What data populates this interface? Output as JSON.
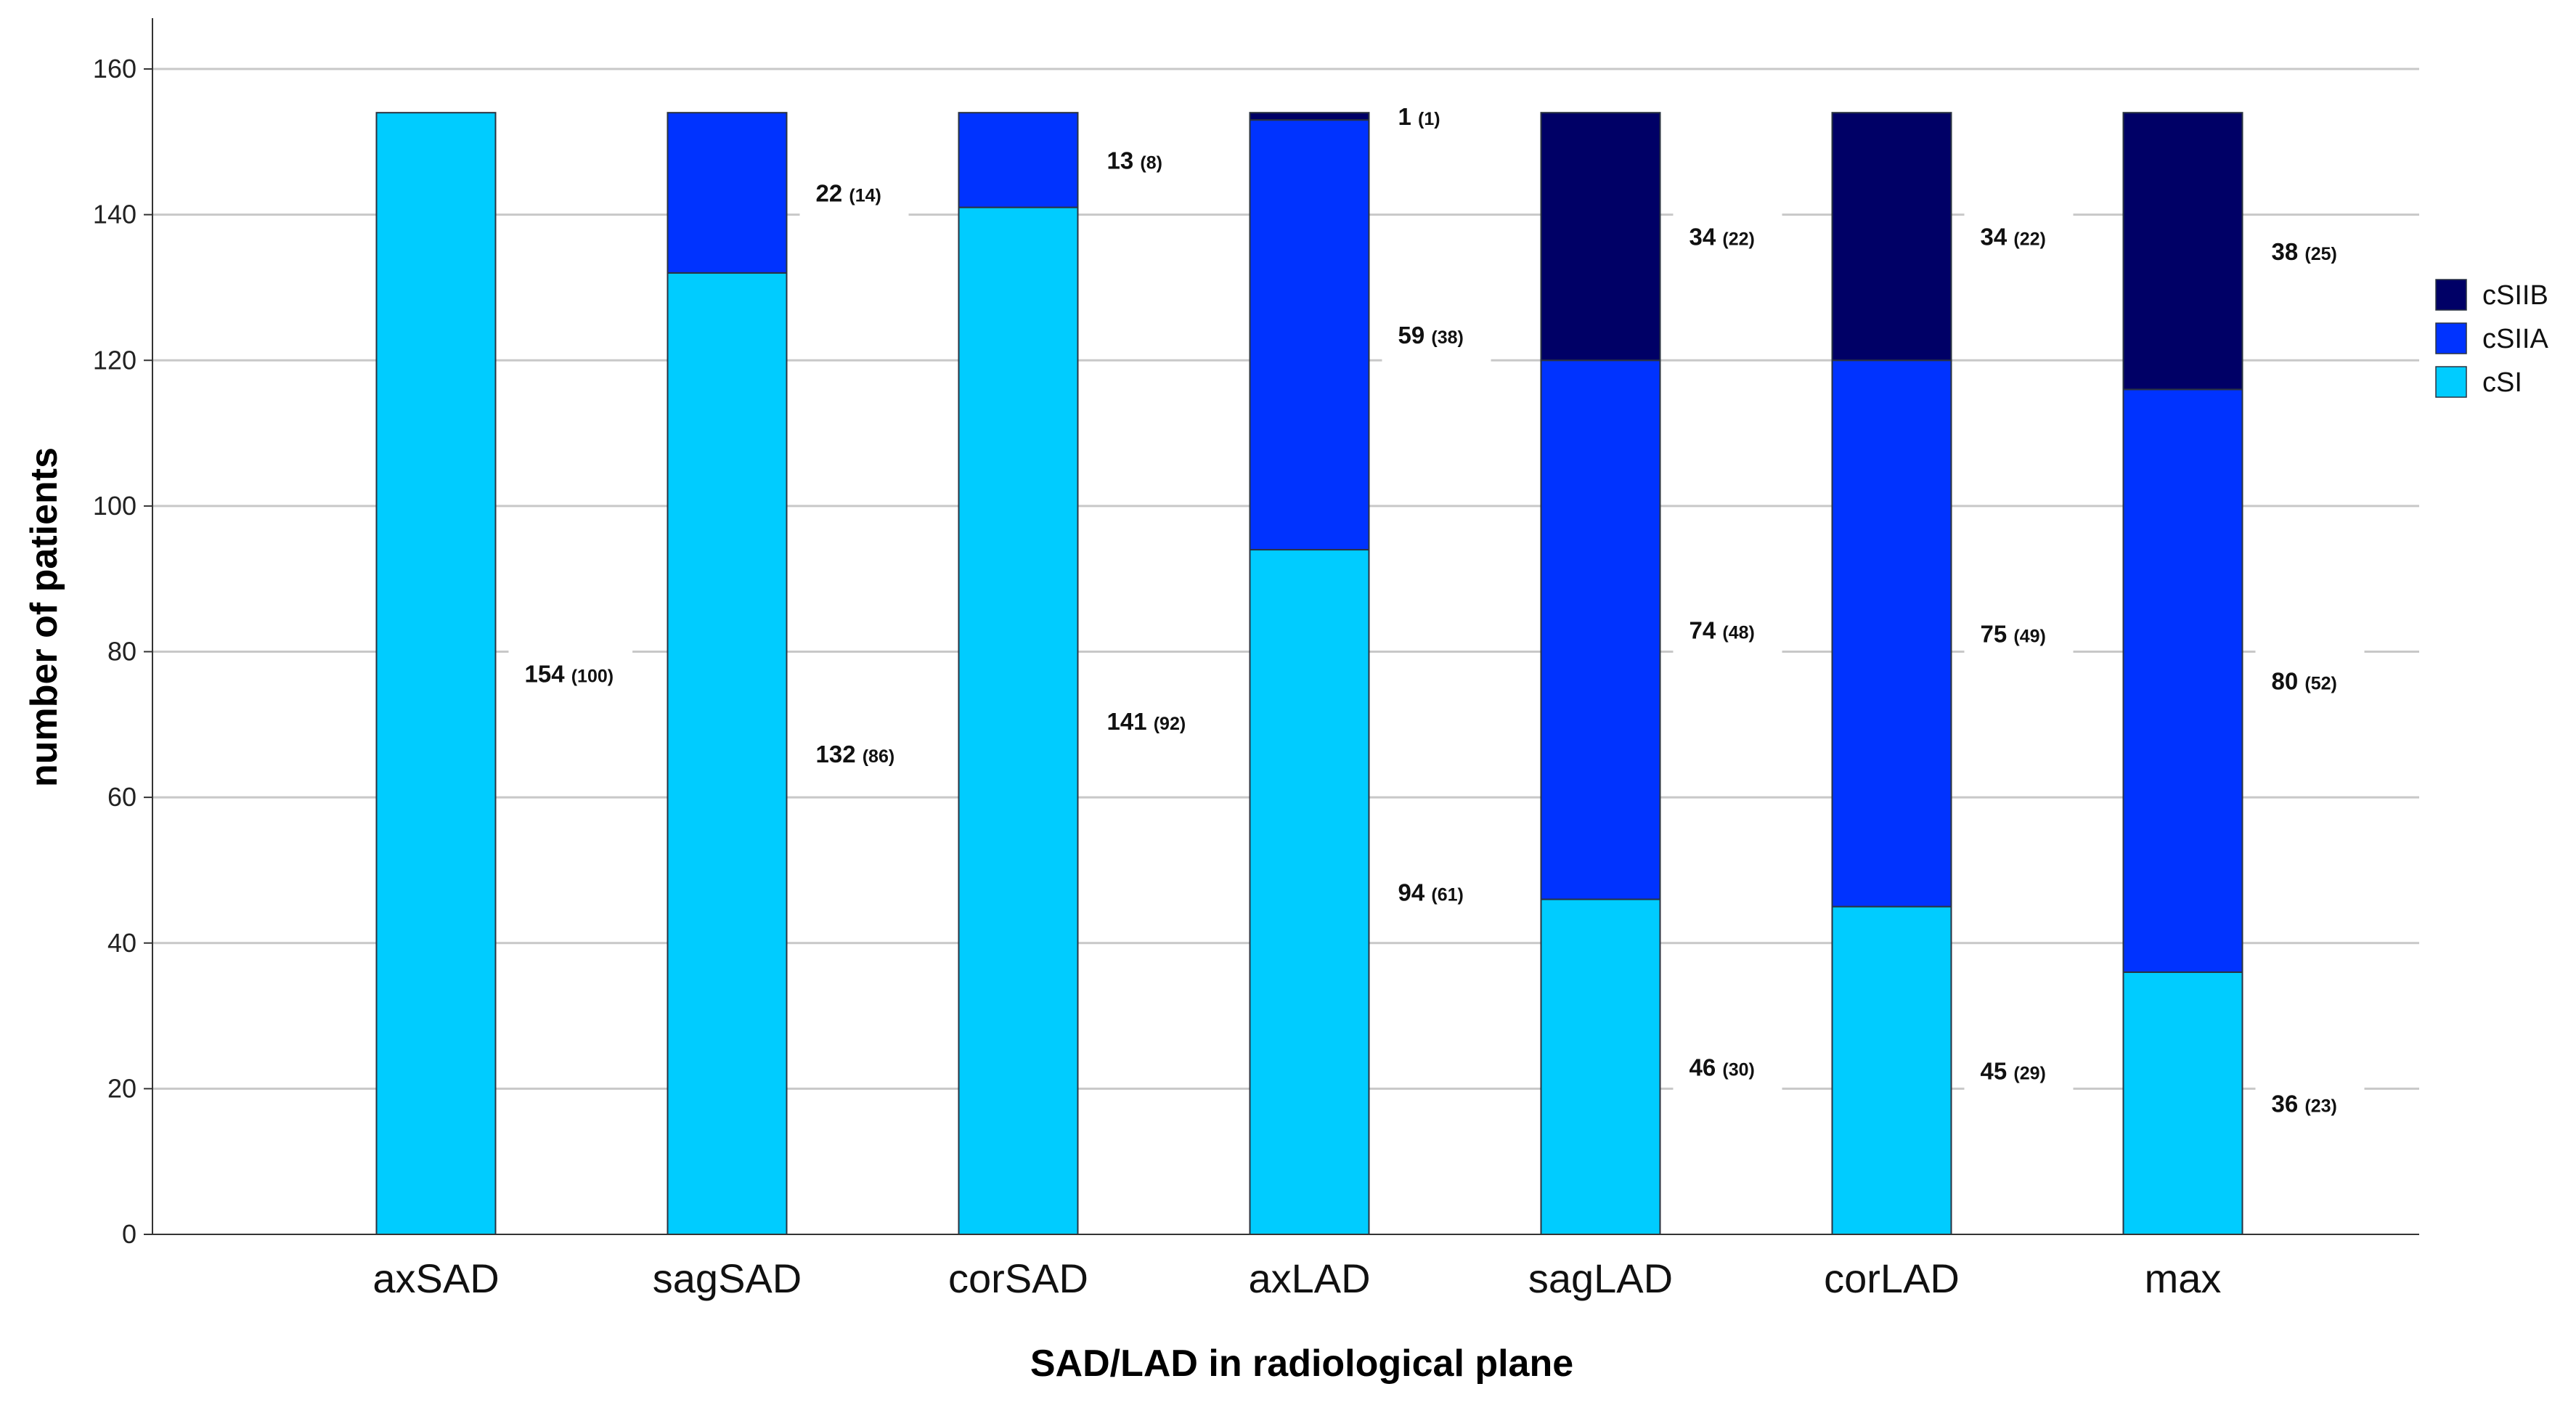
{
  "chart_data": {
    "type": "bar",
    "stacked": true,
    "title": "",
    "xlabel": "SAD/LAD in radiological plane",
    "ylabel": "number of patients",
    "ylim": [
      0,
      160
    ],
    "yticks": [
      0,
      20,
      40,
      60,
      80,
      100,
      120,
      140,
      160
    ],
    "grid": true,
    "legend_position": "right",
    "categories": [
      "axSAD",
      "sagSAD",
      "corSAD",
      "axLAD",
      "sagLAD",
      "corLAD",
      "max"
    ],
    "series": [
      {
        "name": "cSI",
        "color": "#00ccff",
        "values": [
          154,
          132,
          141,
          94,
          46,
          45,
          36
        ],
        "percent": [
          100,
          86,
          92,
          61,
          30,
          29,
          23
        ],
        "labels": [
          "154",
          "132",
          "141",
          "94",
          "46",
          "45",
          "36"
        ],
        "sublabels": [
          "(100)",
          "(86)",
          "(92)",
          "(61)",
          "(30)",
          "(29)",
          "(23)"
        ]
      },
      {
        "name": "cSIIA",
        "color": "#0033ff",
        "values": [
          0,
          22,
          13,
          59,
          74,
          75,
          80
        ],
        "percent": [
          0,
          14,
          8,
          38,
          48,
          49,
          52
        ],
        "labels": [
          "",
          "22",
          "13",
          "59",
          "74",
          "75",
          "80"
        ],
        "sublabels": [
          "",
          "(14)",
          "(8)",
          "(38)",
          "(48)",
          "(49)",
          "(52)"
        ]
      },
      {
        "name": "cSIIB",
        "color": "#000066",
        "values": [
          0,
          0,
          0,
          1,
          34,
          34,
          38
        ],
        "percent": [
          0,
          0,
          0,
          1,
          22,
          22,
          25
        ],
        "labels": [
          "",
          "",
          "",
          "1",
          "34",
          "34",
          "38"
        ],
        "sublabels": [
          "",
          "",
          "",
          "(1)",
          "(22)",
          "(22)",
          "(25)"
        ]
      }
    ],
    "legend_order": [
      "cSIIB",
      "cSIIA",
      "cSI"
    ]
  }
}
